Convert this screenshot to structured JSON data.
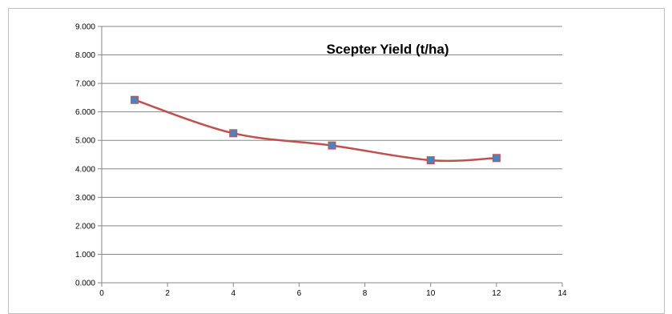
{
  "chart_data": {
    "type": "scatter",
    "title": "Scepter Yield (t/ha)",
    "xlabel": "",
    "ylabel": "",
    "xlim": [
      0,
      14
    ],
    "ylim": [
      0,
      9
    ],
    "x_ticks": [
      0,
      2,
      4,
      6,
      8,
      10,
      12,
      14
    ],
    "y_ticks": [
      "0.000",
      "1.000",
      "2.000",
      "3.000",
      "4.000",
      "5.000",
      "6.000",
      "7.000",
      "8.000",
      "9.000"
    ],
    "grid": "horizontal",
    "legend": "none",
    "line_style": "smoothed",
    "series": [
      {
        "x": [
          1,
          4,
          7,
          10,
          12
        ],
        "y": [
          6.42,
          5.25,
          4.82,
          4.3,
          4.38
        ],
        "line_color": "#c0504d",
        "marker_color": "#4f81bd",
        "marker": "square"
      }
    ]
  }
}
